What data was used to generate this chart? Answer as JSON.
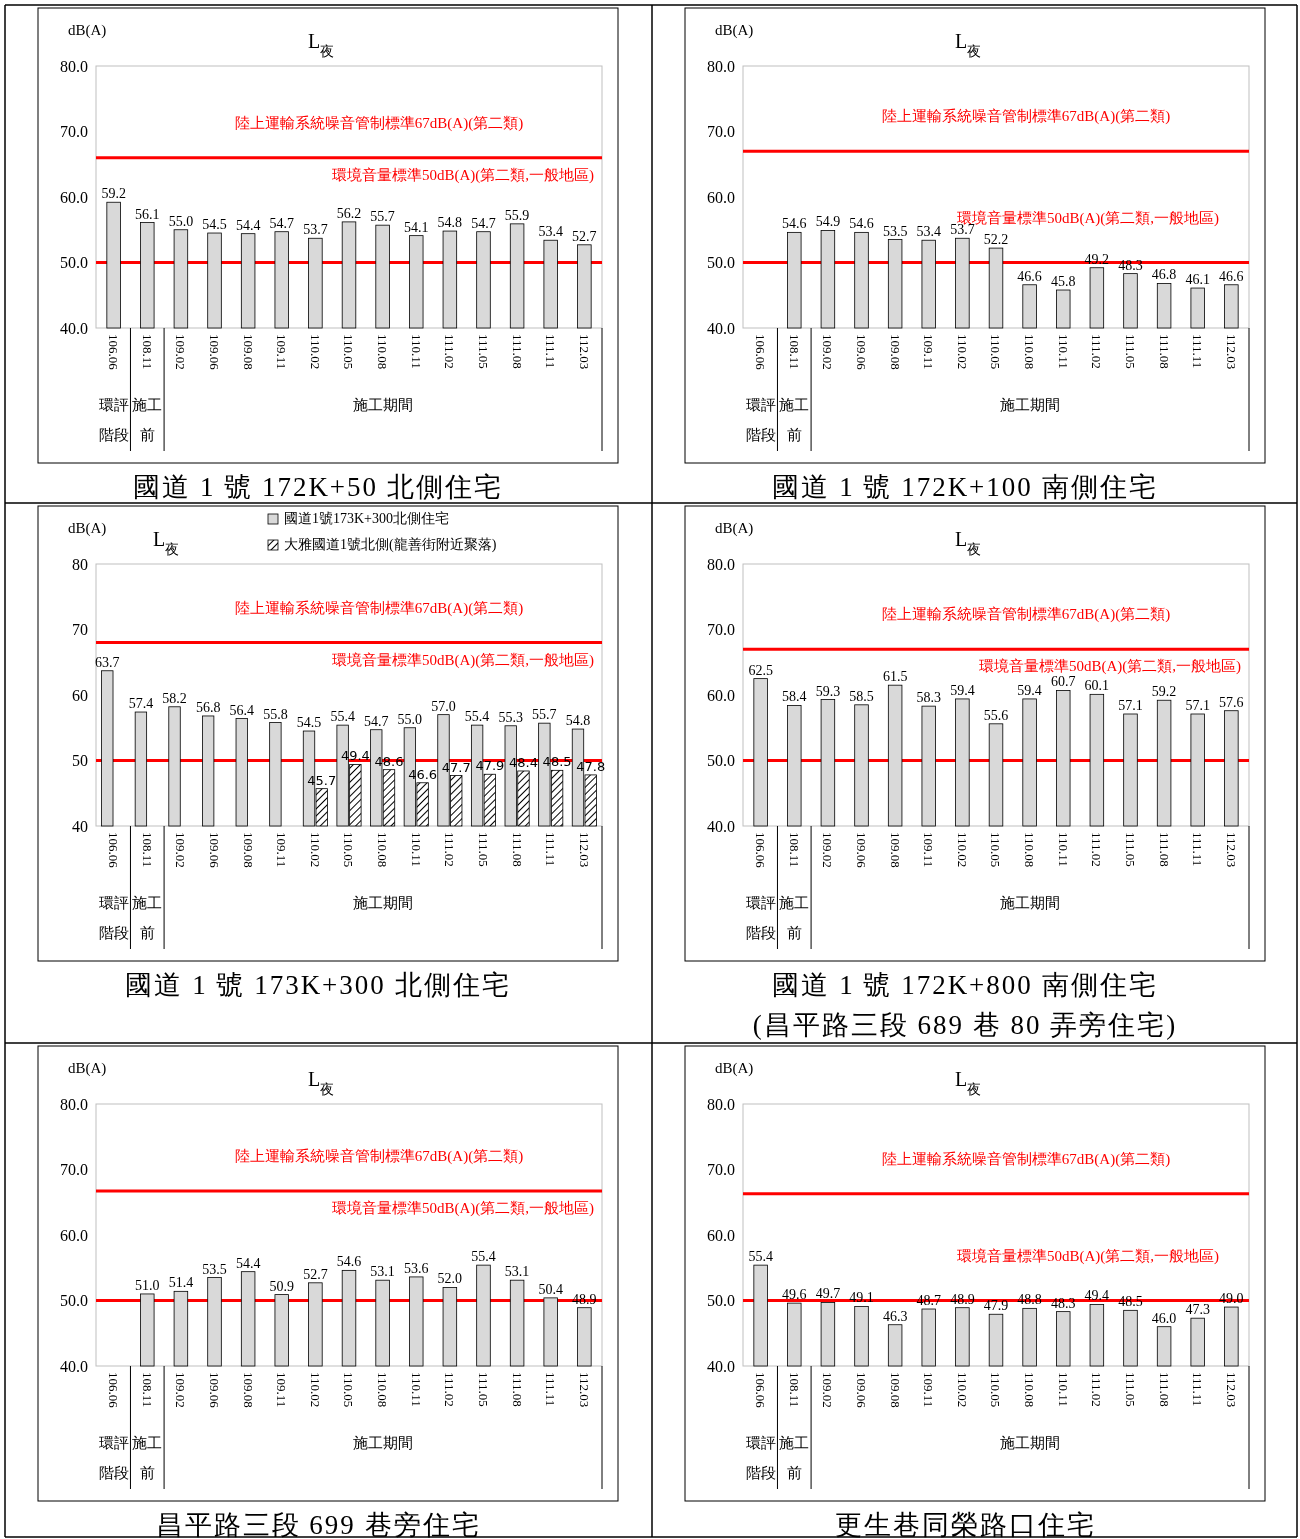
{
  "chart_data": [
    {
      "type": "bar",
      "title": "L$_{夜}$",
      "ylabel": "dB(A)",
      "subtitle": "國道 1 號 172K+50 北側住宅",
      "annotations": [
        "環評階段",
        "施工前",
        "施工期間"
      ],
      "categories": [
        "106.06",
        "108.11",
        "109.02",
        "109.06",
        "109.08",
        "109.11",
        "110.02",
        "110.05",
        "110.08",
        "110.11",
        "111.02",
        "111.05",
        "111.08",
        "111.11",
        "112.03"
      ],
      "series": [
        {
          "color": "#d9d9d9",
          "values": [
            59.2,
            56.1,
            55.0,
            54.5,
            54.4,
            54.7,
            53.7,
            56.2,
            55.7,
            54.1,
            54.8,
            54.7,
            55.9,
            53.4,
            52.7
          ],
          "value_labels": [
            "59.2",
            "56.1",
            "55.0",
            "54.5",
            "54.4",
            "54.7",
            "53.7",
            "56.2",
            "55.7",
            "54.1",
            "54.8",
            "54.7",
            "55.9",
            "53.4",
            "52.7"
          ]
        }
      ],
      "ylim": [
        40,
        80
      ],
      "yticks": [
        {
          "value": 40,
          "label": "40.0"
        },
        {
          "value": 50,
          "label": "50.0"
        },
        {
          "value": 60,
          "label": "60.0"
        },
        {
          "value": 70,
          "label": "70.0"
        },
        {
          "value": 80,
          "label": "80.0"
        }
      ],
      "legend": false,
      "ref_lines": [
        {
          "axis": "y",
          "value": 66,
          "label": "陸上運輸系統噪音管制標準67dB(A)(第二類)",
          "color": "#ff0000"
        },
        {
          "axis": "y",
          "value": 50,
          "label": "環境音量標準50dB(A)(第二類,一般地區)",
          "color": "#ff0000"
        }
      ]
    },
    {
      "type": "bar",
      "title": "L$_{夜}$",
      "ylabel": "dB(A)",
      "subtitle": "國道 1 號 172K+100 南側住宅",
      "annotations": [
        "環評階段",
        "施工前",
        "施工期間"
      ],
      "categories": [
        "106.06",
        "108.11",
        "109.02",
        "109.06",
        "109.08",
        "109.11",
        "110.02",
        "110.05",
        "110.08",
        "110.11",
        "111.02",
        "111.05",
        "111.08",
        "111.11",
        "112.03"
      ],
      "series": [
        {
          "color": "#d9d9d9",
          "values": [
            null,
            54.6,
            54.9,
            54.6,
            53.5,
            53.4,
            53.7,
            52.2,
            46.6,
            45.8,
            49.2,
            48.3,
            46.8,
            46.1,
            46.6
          ],
          "value_labels": [
            null,
            "54.6",
            "54.9",
            "54.6",
            "53.5",
            "53.4",
            "53.7",
            "52.2",
            "46.6",
            "45.8",
            "49.2",
            "48.3",
            "46.8",
            "46.1",
            "46.6"
          ]
        }
      ],
      "ylim": [
        40,
        80
      ],
      "yticks": [
        {
          "value": 40,
          "label": "40.0"
        },
        {
          "value": 50,
          "label": "50.0"
        },
        {
          "value": 60,
          "label": "60.0"
        },
        {
          "value": 70,
          "label": "70.0"
        },
        {
          "value": 80,
          "label": "80.0"
        }
      ],
      "legend": false,
      "ref_lines": [
        {
          "axis": "y",
          "value": 67,
          "label": "陸上運輸系統噪音管制標準67dB(A)(第二類)",
          "color": "#ff0000"
        },
        {
          "axis": "y",
          "value": 50,
          "label": "環境音量標準50dB(A)(第二類,一般地區)",
          "color": "#ff0000"
        }
      ]
    },
    {
      "type": "bar",
      "title": "L$_{夜}$",
      "ylabel": "dB(A)",
      "subtitle": "國道 1 號 173K+300 北側住宅",
      "annotations": [
        "環評階段",
        "施工前",
        "施工期間"
      ],
      "categories": [
        "106.06",
        "108.11",
        "109.02",
        "109.06",
        "109.08",
        "109.11",
        "110.02",
        "110.05",
        "110.08",
        "110.11",
        "111.02",
        "111.05",
        "111.08",
        "111.11",
        "112.03"
      ],
      "series": [
        {
          "name": "國道1號173K+300北側住宅",
          "color": "#d9d9d9",
          "values": [
            63.7,
            57.4,
            58.2,
            56.8,
            56.4,
            55.8,
            54.5,
            55.4,
            54.7,
            55.0,
            57.0,
            55.4,
            55.3,
            55.7,
            54.8
          ],
          "value_labels": [
            "63.7",
            "57.4",
            "58.2",
            "56.8",
            "56.4",
            "55.8",
            "54.5",
            "55.4",
            "54.7",
            "55.0",
            "57.0",
            "55.4",
            "55.3",
            "55.7",
            "54.8"
          ]
        },
        {
          "name": "大雅國道1號北側(龍善街附近聚落)",
          "color": "#000000",
          "values": [
            null,
            null,
            null,
            null,
            null,
            null,
            45.7,
            49.4,
            48.6,
            46.6,
            47.7,
            47.9,
            48.4,
            48.5,
            47.8
          ],
          "value_labels": [
            null,
            null,
            null,
            null,
            null,
            null,
            "45.7",
            "49.4",
            "48.6",
            "46.6",
            "47.7",
            "47.9",
            "48.4",
            "48.5",
            "47.8"
          ]
        }
      ],
      "ylim": [
        40,
        80
      ],
      "yticks": [
        40,
        50,
        60,
        70,
        80
      ],
      "legend": "top",
      "ref_lines": [
        {
          "axis": "y",
          "value": 68,
          "label": "陸上運輸系統噪音管制標準67dB(A)(第二類)",
          "color": "#ff0000"
        },
        {
          "axis": "y",
          "value": 50,
          "label": "環境音量標準50dB(A)(第二類,一般地區)",
          "color": "#ff0000"
        }
      ]
    },
    {
      "type": "bar",
      "title": "L$_{夜}$",
      "ylabel": "dB(A)",
      "subtitle": "國道 1 號 172K+800 南側住宅\n(昌平路三段 689 巷 80 弄旁住宅)",
      "annotations": [
        "環評階段",
        "施工前",
        "施工期間"
      ],
      "categories": [
        "106.06",
        "108.11",
        "109.02",
        "109.06",
        "109.08",
        "109.11",
        "110.02",
        "110.05",
        "110.08",
        "110.11",
        "111.02",
        "111.05",
        "111.08",
        "111.11",
        "112.03"
      ],
      "series": [
        {
          "color": "#d9d9d9",
          "values": [
            62.5,
            58.4,
            59.3,
            58.5,
            61.5,
            58.3,
            59.4,
            55.6,
            59.4,
            60.7,
            60.1,
            57.1,
            59.2,
            57.1,
            57.6
          ],
          "value_labels": [
            "62.5",
            "58.4",
            "59.3",
            "58.5",
            "61.5",
            "58.3",
            "59.4",
            "55.6",
            "59.4",
            "60.7",
            "60.1",
            "57.1",
            "59.2",
            "57.1",
            "57.6"
          ]
        }
      ],
      "ylim": [
        40,
        80
      ],
      "yticks": [
        {
          "value": 40,
          "label": "40.0"
        },
        {
          "value": 50,
          "label": "50.0"
        },
        {
          "value": 60,
          "label": "60.0"
        },
        {
          "value": 70,
          "label": "70.0"
        },
        {
          "value": 80,
          "label": "80.0"
        }
      ],
      "legend": false,
      "ref_lines": [
        {
          "axis": "y",
          "value": 67,
          "label": "陸上運輸系統噪音管制標準67dB(A)(第二類)",
          "color": "#ff0000"
        },
        {
          "axis": "y",
          "value": 50,
          "label": "環境音量標準50dB(A)(第二類,一般地區)",
          "color": "#ff0000"
        }
      ]
    },
    {
      "type": "bar",
      "title": "L$_{夜}$",
      "ylabel": "dB(A)",
      "subtitle": "昌平路三段 699 巷旁住宅",
      "annotations": [
        "環評階段",
        "施工前",
        "施工期間"
      ],
      "categories": [
        "106.06",
        "108.11",
        "109.02",
        "109.06",
        "109.08",
        "109.11",
        "110.02",
        "110.05",
        "110.08",
        "110.11",
        "111.02",
        "111.05",
        "111.08",
        "111.11",
        "112.03"
      ],
      "series": [
        {
          "color": "#d9d9d9",
          "values": [
            null,
            51.0,
            51.4,
            53.5,
            54.4,
            50.9,
            52.7,
            54.6,
            53.1,
            53.6,
            52.0,
            55.4,
            53.1,
            50.4,
            48.9
          ],
          "value_labels": [
            null,
            "51.0",
            "51.4",
            "53.5",
            "54.4",
            "50.9",
            "52.7",
            "54.6",
            "53.1",
            "53.6",
            "52.0",
            "55.4",
            "53.1",
            "50.4",
            "48.9"
          ]
        }
      ],
      "ylim": [
        40,
        80
      ],
      "yticks": [
        {
          "value": 40,
          "label": "40.0"
        },
        {
          "value": 50,
          "label": "50.0"
        },
        {
          "value": 60,
          "label": "60.0"
        },
        {
          "value": 70,
          "label": "70.0"
        },
        {
          "value": 80,
          "label": "80.0"
        }
      ],
      "legend": false,
      "ref_lines": [
        {
          "axis": "y",
          "value": 66.7,
          "label": "陸上運輸系統噪音管制標準67dB(A)(第二類)",
          "color": "#ff0000"
        },
        {
          "axis": "y",
          "value": 50,
          "label": "環境音量標準50dB(A)(第二類,一般地區)",
          "color": "#ff0000"
        }
      ]
    },
    {
      "type": "bar",
      "title": "L$_{夜}$",
      "ylabel": "dB(A)",
      "subtitle": "更生巷同榮路口住宅",
      "annotations": [
        "環評階段",
        "施工前",
        "施工期間"
      ],
      "categories": [
        "106.06",
        "108.11",
        "109.02",
        "109.06",
        "109.08",
        "109.11",
        "110.02",
        "110.05",
        "110.08",
        "110.11",
        "111.02",
        "111.05",
        "111.08",
        "111.11",
        "112.03"
      ],
      "series": [
        {
          "color": "#d9d9d9",
          "values": [
            55.4,
            49.6,
            49.7,
            49.1,
            46.3,
            48.7,
            48.9,
            47.9,
            48.8,
            48.3,
            49.4,
            48.5,
            46.0,
            47.3,
            49.0
          ],
          "value_labels": [
            "55.4",
            "49.6",
            "49.7",
            "49.1",
            "46.3",
            "48.7",
            "48.9",
            "47.9",
            "48.8",
            "48.3",
            "49.4",
            "48.5",
            "46.0",
            "47.3",
            "49.0"
          ]
        }
      ],
      "ylim": [
        40,
        80
      ],
      "yticks": [
        {
          "value": 40,
          "label": "40.0"
        },
        {
          "value": 50,
          "label": "50.0"
        },
        {
          "value": 60,
          "label": "60.0"
        },
        {
          "value": 70,
          "label": "70.0"
        },
        {
          "value": 80,
          "label": "80.0"
        }
      ],
      "legend": false,
      "ref_lines": [
        {
          "axis": "y",
          "value": 66.3,
          "label": "陸上運輸系統噪音管制標準67dB(A)(第二類)",
          "color": "#ff0000"
        },
        {
          "axis": "y",
          "value": 50,
          "label": "環境音量標準50dB(A)(第二類,一般地區)",
          "color": "#ff0000"
        }
      ]
    }
  ]
}
